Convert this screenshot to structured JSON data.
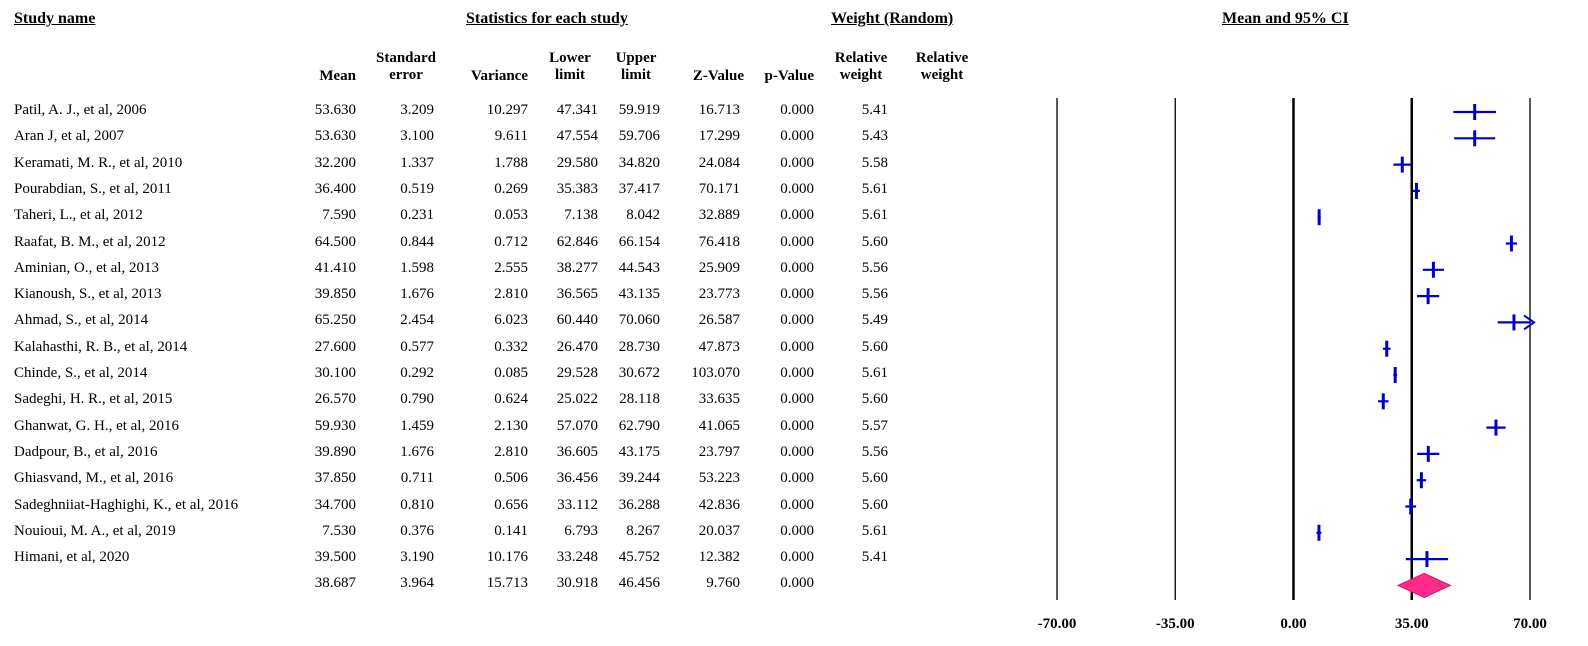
{
  "headers": {
    "study_name": "Study name",
    "statistics": "Statistics for each study",
    "weight": "Weight (Random)",
    "ci": "Mean and 95% CI"
  },
  "columns": {
    "mean": "Mean",
    "se": [
      "Standard",
      "error"
    ],
    "variance": "Variance",
    "lower": [
      "Lower",
      "limit"
    ],
    "upper": [
      "Upper",
      "limit"
    ],
    "z": "Z-Value",
    "p": "p-Value",
    "relweight1": [
      "Relative",
      "weight"
    ],
    "relweight2": [
      "Relative",
      "weight"
    ]
  },
  "chart_data": {
    "type": "forest",
    "xlim": [
      -70,
      70
    ],
    "x_ticks": [
      -70,
      -35,
      0,
      35,
      70
    ],
    "x_tick_labels": [
      "-70.00",
      "-35.00",
      "0.00",
      "35.00",
      "70.00"
    ],
    "reference_lines": [
      -35,
      0,
      35
    ],
    "studies": [
      {
        "name": "Patil, A. J., et al,  2006",
        "mean": "53.630",
        "se": "3.209",
        "variance": "10.297",
        "lower": "47.341",
        "upper": "59.919",
        "z": "16.713",
        "p": "0.000",
        "weight": "5.41"
      },
      {
        "name": "Aran J, et al, 2007",
        "mean": "53.630",
        "se": "3.100",
        "variance": "9.611",
        "lower": "47.554",
        "upper": "59.706",
        "z": "17.299",
        "p": "0.000",
        "weight": "5.43"
      },
      {
        "name": "Keramati, M. R., et al, 2010",
        "mean": "32.200",
        "se": "1.337",
        "variance": "1.788",
        "lower": "29.580",
        "upper": "34.820",
        "z": "24.084",
        "p": "0.000",
        "weight": "5.58"
      },
      {
        "name": "Pourabdian, S., et al, 2011",
        "mean": "36.400",
        "se": "0.519",
        "variance": "0.269",
        "lower": "35.383",
        "upper": "37.417",
        "z": "70.171",
        "p": "0.000",
        "weight": "5.61"
      },
      {
        "name": "Taheri, L., et al, 2012",
        "mean": "7.590",
        "se": "0.231",
        "variance": "0.053",
        "lower": "7.138",
        "upper": "8.042",
        "z": "32.889",
        "p": "0.000",
        "weight": "5.61"
      },
      {
        "name": "Raafat, B. M., et al, 2012",
        "mean": "64.500",
        "se": "0.844",
        "variance": "0.712",
        "lower": "62.846",
        "upper": "66.154",
        "z": "76.418",
        "p": "0.000",
        "weight": "5.60"
      },
      {
        "name": "Aminian, O., et al, 2013",
        "mean": "41.410",
        "se": "1.598",
        "variance": "2.555",
        "lower": "38.277",
        "upper": "44.543",
        "z": "25.909",
        "p": "0.000",
        "weight": "5.56"
      },
      {
        "name": "Kianoush, S., et al, 2013",
        "mean": "39.850",
        "se": "1.676",
        "variance": "2.810",
        "lower": "36.565",
        "upper": "43.135",
        "z": "23.773",
        "p": "0.000",
        "weight": "5.56"
      },
      {
        "name": "Ahmad, S., et al, 2014",
        "mean": "65.250",
        "se": "2.454",
        "variance": "6.023",
        "lower": "60.440",
        "upper": "70.060",
        "z": "26.587",
        "p": "0.000",
        "weight": "5.49"
      },
      {
        "name": "Kalahasthi, R. B., et al, 2014",
        "mean": "27.600",
        "se": "0.577",
        "variance": "0.332",
        "lower": "26.470",
        "upper": "28.730",
        "z": "47.873",
        "p": "0.000",
        "weight": "5.60"
      },
      {
        "name": "Chinde, S., et al, 2014",
        "mean": "30.100",
        "se": "0.292",
        "variance": "0.085",
        "lower": "29.528",
        "upper": "30.672",
        "z": "103.070",
        "p": "0.000",
        "weight": "5.61"
      },
      {
        "name": "Sadeghi, H. R., et al, 2015",
        "mean": "26.570",
        "se": "0.790",
        "variance": "0.624",
        "lower": "25.022",
        "upper": "28.118",
        "z": "33.635",
        "p": "0.000",
        "weight": "5.60"
      },
      {
        "name": "Ghanwat, G. H., et al, 2016",
        "mean": "59.930",
        "se": "1.459",
        "variance": "2.130",
        "lower": "57.070",
        "upper": "62.790",
        "z": "41.065",
        "p": "0.000",
        "weight": "5.57"
      },
      {
        "name": "Dadpour, B., et al, 2016",
        "mean": "39.890",
        "se": "1.676",
        "variance": "2.810",
        "lower": "36.605",
        "upper": "43.175",
        "z": "23.797",
        "p": "0.000",
        "weight": "5.56"
      },
      {
        "name": "Ghiasvand, M., et al, 2016",
        "mean": "37.850",
        "se": "0.711",
        "variance": "0.506",
        "lower": "36.456",
        "upper": "39.244",
        "z": "53.223",
        "p": "0.000",
        "weight": "5.60"
      },
      {
        "name": "Sadeghniiat-Haghighi, K., et al, 2016",
        "mean": "34.700",
        "se": "0.810",
        "variance": "0.656",
        "lower": "33.112",
        "upper": "36.288",
        "z": "42.836",
        "p": "0.000",
        "weight": "5.60"
      },
      {
        "name": "Nouioui, M. A., et al, 2019",
        "mean": "7.530",
        "se": "0.376",
        "variance": "0.141",
        "lower": "6.793",
        "upper": "8.267",
        "z": "20.037",
        "p": "0.000",
        "weight": "5.61"
      },
      {
        "name": "Himani, et al, 2020",
        "mean": "39.500",
        "se": "3.190",
        "variance": "10.176",
        "lower": "33.248",
        "upper": "45.752",
        "z": "12.382",
        "p": "0.000",
        "weight": "5.41"
      }
    ],
    "summary": {
      "name": "",
      "mean": "38.687",
      "se": "3.964",
      "variance": "15.713",
      "lower": "30.918",
      "upper": "46.456",
      "z": "9.760",
      "p": "0.000"
    },
    "colors": {
      "study": "#0000cc",
      "summary": "#ff2a8a",
      "lines": "#000000"
    }
  }
}
